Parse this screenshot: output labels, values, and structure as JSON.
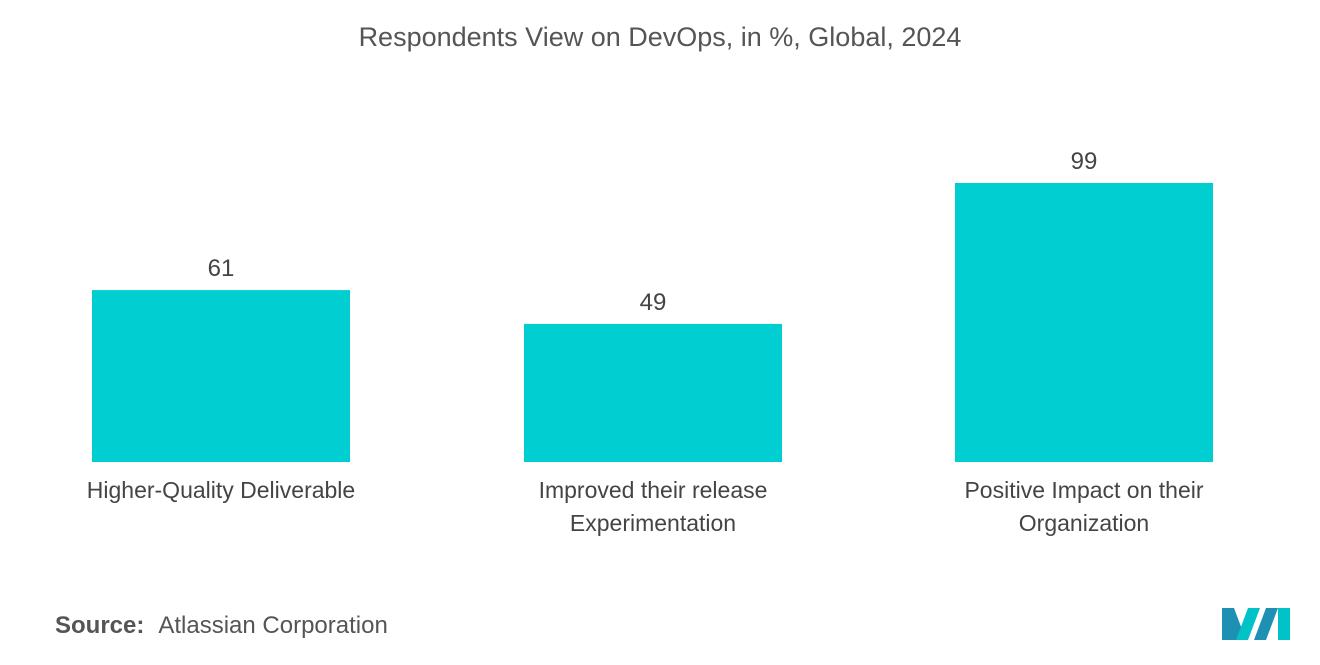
{
  "chart_data": {
    "type": "bar",
    "title": "Respondents View on DevOps, in %, Global, 2024",
    "categories": [
      [
        "Higher-Quality Deliverable"
      ],
      [
        "Improved their release",
        "Experimentation"
      ],
      [
        "Positive Impact on their",
        "Organization"
      ]
    ],
    "values": [
      61,
      49,
      99
    ],
    "value_labels": [
      "61",
      "49",
      "99"
    ],
    "xlabel": "",
    "ylabel": "",
    "ylim": [
      0,
      100
    ],
    "grid": false,
    "legend": "none",
    "bar_color": "#00CED1"
  },
  "source": {
    "label": "Source:",
    "text": "Atlassian Corporation"
  },
  "logo": {
    "icon": "mordor-logo-icon",
    "colors": [
      "#1E90B4",
      "#00C2C7"
    ]
  }
}
